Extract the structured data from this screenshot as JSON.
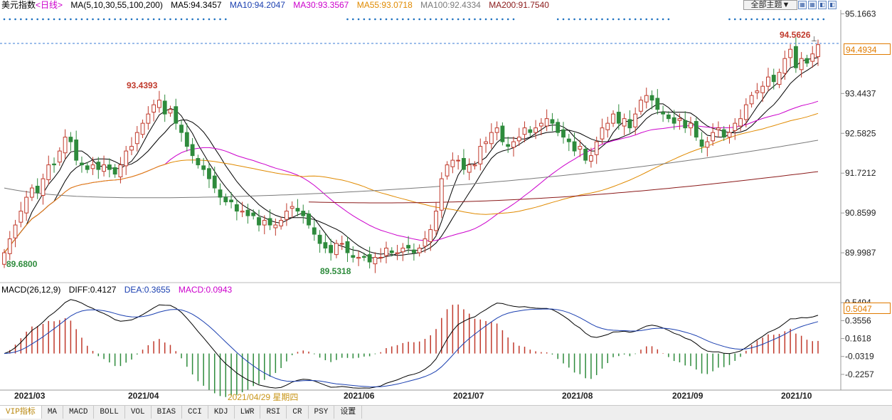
{
  "header": {
    "symbol": "美元指数",
    "period": "<日线>",
    "ma_title": "MA(5,10,30,55,100,200)",
    "ma5": "MA5:94.3457",
    "ma10": "MA10:94.2047",
    "ma30": "MA30:93.3567",
    "ma55": "MA55:93.0718",
    "ma100": "MA100:92.4334",
    "ma200": "MA200:91.7540",
    "theme_button": "全部主题▼"
  },
  "macd_header": {
    "title": "MACD(26,12,9)",
    "diff": "DIFF:0.4127",
    "dea": "DEA:0.3655",
    "macd": "MACD:0.0943"
  },
  "price_axis": [
    "95.1663",
    "94.4934",
    "93.4437",
    "92.5825",
    "91.7212",
    "90.8599",
    "89.9987"
  ],
  "macd_axis": [
    "0.5494",
    "0.5047",
    "0.3556",
    "0.1618",
    "-0.0319",
    "-0.2257"
  ],
  "annotations": {
    "high_label": "94.5626",
    "apr_high": "93.4393",
    "mar_low": "89.6800",
    "may_low": "89.5318"
  },
  "date_labels": [
    "2021/03",
    "2021/04",
    "2021/06",
    "2021/07",
    "2021/08",
    "2021/09",
    "2021/10"
  ],
  "hover_date": "2021/04/29 星期四",
  "tabs": [
    "VIP指标",
    "MA",
    "MACD",
    "BOLL",
    "VOL",
    "BIAS",
    "CCI",
    "KDJ",
    "LWR",
    "RSI",
    "CR",
    "PSY",
    "设置"
  ],
  "tool_icons": [
    "grid-icon",
    "grid-icon",
    "split-icon",
    "split-icon"
  ],
  "colors": {
    "up": "#c0392b",
    "down": "#2e8b3c",
    "ma5": "#000000",
    "ma10": "#000000",
    "ma30": "#cc00cc",
    "ma55": "#e08a00",
    "ma100": "#7a7a7a",
    "ma200": "#8b1a1a",
    "accent": "#e07b00"
  },
  "chart_data": {
    "type": "candlestick",
    "title": "美元指数 <日线>",
    "x_range": [
      "2021/02/22",
      "2021/10/12"
    ],
    "ylim": [
      89.4,
      95.25
    ],
    "current_price": 94.4934,
    "close_series": [
      90.0,
      90.3,
      90.6,
      90.9,
      91.2,
      91.4,
      91.3,
      91.6,
      91.9,
      91.9,
      92.2,
      92.5,
      92.4,
      92.0,
      91.9,
      91.8,
      91.9,
      91.8,
      91.9,
      91.8,
      91.7,
      91.9,
      92.2,
      92.3,
      92.6,
      92.8,
      93.0,
      93.2,
      93.3,
      93.0,
      93.1,
      92.8,
      92.6,
      92.3,
      92.1,
      91.9,
      91.8,
      91.6,
      91.4,
      91.2,
      91.1,
      91.1,
      90.9,
      90.9,
      90.8,
      90.8,
      90.6,
      90.7,
      90.6,
      90.6,
      90.7,
      90.9,
      91.0,
      90.9,
      90.8,
      90.6,
      90.4,
      90.2,
      90.1,
      90.0,
      90.2,
      90.2,
      90.0,
      89.9,
      89.9,
      89.9,
      89.8,
      89.9,
      89.9,
      90.1,
      90.0,
      90.0,
      90.1,
      90.1,
      90.0,
      90.1,
      90.3,
      90.5,
      90.9,
      91.6,
      91.9,
      92.0,
      92.0,
      91.8,
      91.9,
      91.9,
      92.3,
      92.4,
      92.6,
      92.7,
      92.4,
      92.3,
      92.4,
      92.5,
      92.7,
      92.6,
      92.7,
      92.8,
      92.9,
      92.8,
      92.6,
      92.5,
      92.4,
      92.2,
      92.3,
      92.0,
      92.1,
      92.4,
      92.7,
      92.8,
      93.0,
      92.8,
      92.9,
      92.7,
      93.0,
      93.3,
      93.4,
      93.3,
      93.1,
      93.0,
      92.9,
      92.8,
      92.9,
      92.7,
      92.8,
      92.5,
      92.3,
      92.4,
      92.6,
      92.7,
      92.5,
      92.6,
      92.8,
      92.9,
      93.2,
      93.4,
      93.5,
      93.6,
      93.8,
      93.7,
      93.9,
      94.2,
      94.4,
      94.0,
      94.2,
      94.1,
      94.3,
      94.5
    ],
    "ma_params": [
      5,
      10,
      30,
      55,
      100,
      200
    ],
    "ma_values": {
      "MA5": 94.3457,
      "MA10": 94.2047,
      "MA30": 93.3567,
      "MA55": 93.0718,
      "MA100": 92.4334,
      "MA200": 91.754
    },
    "macd": {
      "params": [
        26,
        12,
        9
      ],
      "diff": 0.4127,
      "dea": 0.3655,
      "macd": 0.0943,
      "ylim": [
        -0.38,
        0.62
      ]
    }
  }
}
